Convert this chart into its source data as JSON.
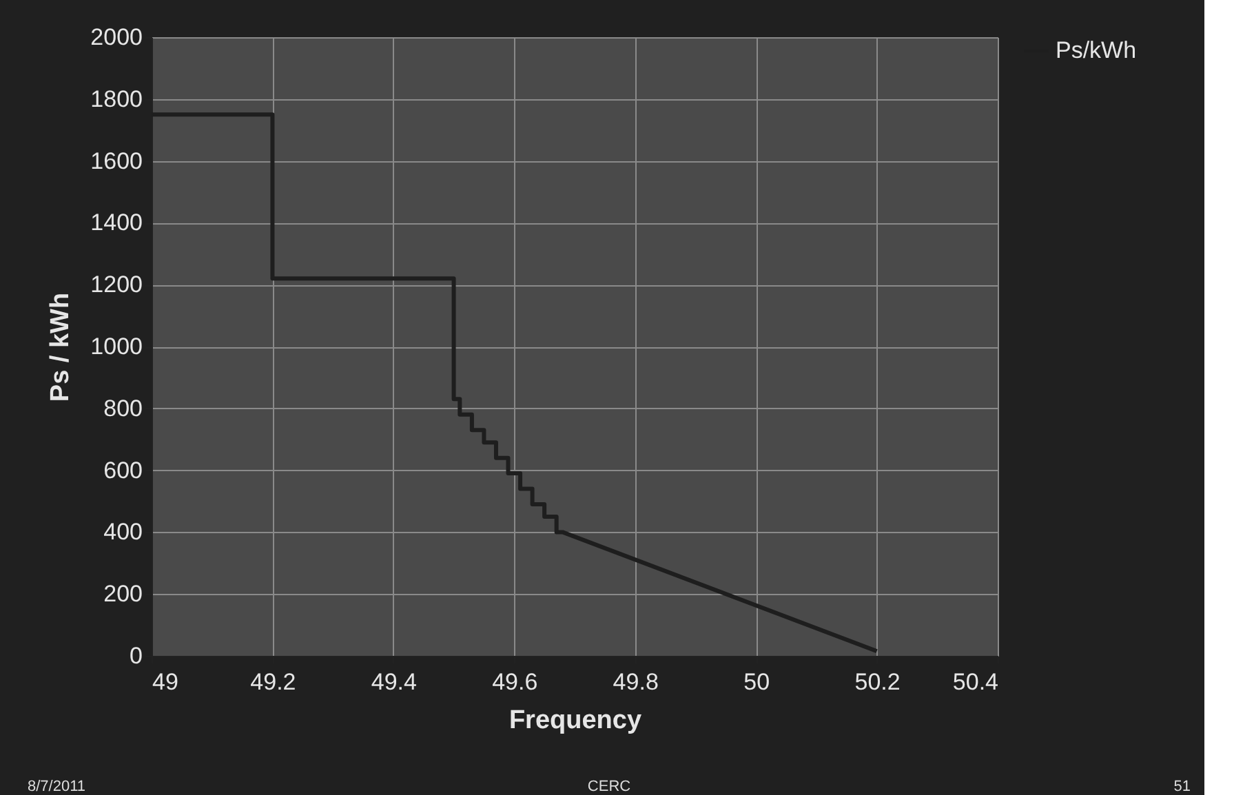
{
  "chart_data": {
    "type": "line",
    "xlabel": "Frequency",
    "ylabel": "Ps / kWh",
    "x": [
      49,
      49.2,
      49.2,
      49.5,
      49.5,
      49.51,
      49.51,
      49.53,
      49.53,
      49.55,
      49.55,
      49.57,
      49.57,
      49.59,
      49.59,
      49.61,
      49.61,
      49.63,
      49.63,
      49.65,
      49.65,
      49.67,
      49.67,
      49.68,
      50.2
    ],
    "series": [
      {
        "name": "Ps/kWh",
        "color": "#1e1e1e",
        "values": [
          1750,
          1750,
          1220,
          1220,
          830,
          830,
          780,
          780,
          730,
          730,
          690,
          690,
          640,
          640,
          590,
          590,
          540,
          540,
          490,
          490,
          450,
          450,
          400,
          400,
          15
        ]
      }
    ],
    "xlim": [
      49,
      50.4
    ],
    "xticks": [
      49,
      49.2,
      49.4,
      49.6,
      49.8,
      50,
      50.2,
      50.4
    ],
    "ylim": [
      0,
      2000
    ],
    "yticks": [
      0,
      200,
      400,
      600,
      800,
      1000,
      1200,
      1400,
      1600,
      1800,
      2000
    ],
    "grid": true,
    "legend": "right",
    "marker": "none",
    "line_style": "solid",
    "annotations": [
      "8/7/2011",
      "CERC",
      "51"
    ]
  }
}
